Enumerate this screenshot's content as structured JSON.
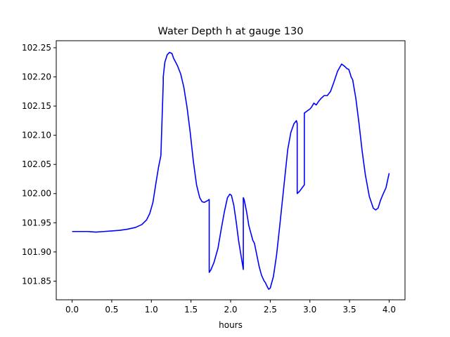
{
  "chart_data": {
    "type": "line",
    "title": "Water Depth h at gauge 130",
    "xlabel": "hours",
    "ylabel": "",
    "xlim": [
      -0.2,
      4.2
    ],
    "ylim": [
      101.818,
      102.262
    ],
    "x_ticks": [
      0.0,
      0.5,
      1.0,
      1.5,
      2.0,
      2.5,
      3.0,
      3.5,
      4.0
    ],
    "x_tick_labels": [
      "0.0",
      "0.5",
      "1.0",
      "1.5",
      "2.0",
      "2.5",
      "3.0",
      "3.5",
      "4.0"
    ],
    "y_ticks": [
      101.85,
      101.9,
      101.95,
      102.0,
      102.05,
      102.1,
      102.15,
      102.2,
      102.25
    ],
    "y_tick_labels": [
      "101.85",
      "101.90",
      "101.95",
      "102.00",
      "102.05",
      "102.10",
      "102.15",
      "102.20",
      "102.25"
    ],
    "grid": false,
    "legend": "none",
    "series": [
      {
        "color": "#0000ff",
        "x": [
          0.0,
          0.1,
          0.2,
          0.3,
          0.4,
          0.5,
          0.6,
          0.7,
          0.8,
          0.88,
          0.94,
          0.98,
          1.02,
          1.06,
          1.09,
          1.12,
          1.15,
          1.15,
          1.17,
          1.2,
          1.23,
          1.26,
          1.28,
          1.33,
          1.37,
          1.41,
          1.45,
          1.49,
          1.53,
          1.57,
          1.61,
          1.64,
          1.67,
          1.71,
          1.73,
          1.73,
          1.75,
          1.79,
          1.84,
          1.88,
          1.92,
          1.96,
          1.99,
          2.01,
          2.04,
          2.07,
          2.1,
          2.13,
          2.16,
          2.16,
          2.17,
          2.2,
          2.23,
          2.24,
          2.26,
          2.28,
          2.3,
          2.33,
          2.36,
          2.39,
          2.42,
          2.44,
          2.46,
          2.48,
          2.5,
          2.54,
          2.58,
          2.62,
          2.67,
          2.72,
          2.76,
          2.8,
          2.83,
          2.84,
          2.84,
          2.87,
          2.93,
          2.93,
          2.95,
          2.97,
          3.0,
          3.02,
          3.05,
          3.08,
          3.11,
          3.14,
          3.18,
          3.22,
          3.26,
          3.3,
          3.35,
          3.4,
          3.44,
          3.47,
          3.49,
          3.51,
          3.52,
          3.54,
          3.58,
          3.62,
          3.66,
          3.7,
          3.75,
          3.8,
          3.83,
          3.86,
          3.89,
          3.92,
          3.96,
          4.0
        ],
        "y": [
          101.935,
          101.935,
          101.935,
          101.934,
          101.935,
          101.936,
          101.937,
          101.939,
          101.942,
          101.947,
          101.955,
          101.966,
          101.985,
          102.02,
          102.045,
          102.065,
          102.19,
          102.2,
          102.225,
          102.238,
          102.242,
          102.24,
          102.232,
          102.219,
          102.205,
          102.182,
          102.148,
          102.105,
          102.055,
          102.015,
          101.993,
          101.986,
          101.985,
          101.988,
          101.99,
          101.865,
          101.869,
          101.882,
          101.906,
          101.938,
          101.968,
          101.993,
          101.999,
          101.997,
          101.98,
          101.952,
          101.92,
          101.895,
          101.87,
          101.993,
          101.99,
          101.97,
          101.945,
          101.94,
          101.93,
          101.92,
          101.915,
          101.895,
          101.875,
          101.86,
          101.851,
          101.847,
          101.841,
          101.836,
          101.838,
          101.858,
          101.895,
          101.945,
          102.01,
          102.075,
          102.105,
          102.12,
          102.125,
          102.12,
          102.0,
          102.004,
          102.015,
          102.138,
          102.14,
          102.142,
          102.145,
          102.148,
          102.155,
          102.152,
          102.158,
          102.163,
          102.168,
          102.168,
          102.175,
          102.19,
          102.21,
          102.222,
          102.218,
          102.214,
          102.213,
          102.205,
          102.2,
          102.195,
          102.163,
          102.12,
          102.072,
          102.032,
          101.995,
          101.975,
          101.972,
          101.975,
          101.988,
          101.998,
          102.01,
          102.035
        ]
      }
    ]
  }
}
